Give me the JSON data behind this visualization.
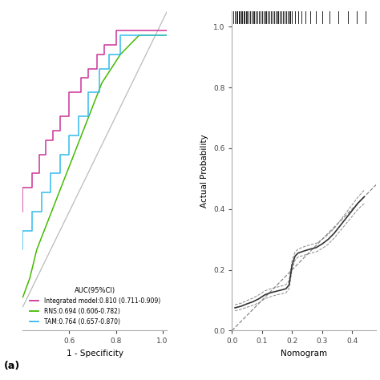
{
  "roc": {
    "title": "AUC(95%CI)",
    "xlabel": "1 - Specificity",
    "xlim": [
      0.4,
      1.02
    ],
    "ylim": [
      0.35,
      1.02
    ],
    "xticks": [
      0.6,
      0.8,
      1.0
    ],
    "panel_label": "(a)",
    "diagonal_color": "#bbbbbb",
    "curves": [
      {
        "label": "Integrated model:0.810 (0.711-0.909)",
        "color": "#cc3399",
        "fpr": [
          0.4,
          0.4,
          0.44,
          0.44,
          0.47,
          0.47,
          0.5,
          0.5,
          0.53,
          0.53,
          0.56,
          0.56,
          0.6,
          0.6,
          0.65,
          0.65,
          0.68,
          0.68,
          0.72,
          0.72,
          0.75,
          0.75,
          0.8,
          0.8,
          1.02
        ],
        "tpr": [
          0.6,
          0.65,
          0.65,
          0.68,
          0.68,
          0.72,
          0.72,
          0.75,
          0.75,
          0.77,
          0.77,
          0.8,
          0.8,
          0.85,
          0.85,
          0.88,
          0.88,
          0.9,
          0.9,
          0.93,
          0.93,
          0.95,
          0.95,
          0.98,
          0.98
        ]
      },
      {
        "label": "RNS:0.694 (0.606-0.782)",
        "color": "#44bb00",
        "fpr": [
          0.4,
          0.43,
          0.46,
          0.5,
          0.54,
          0.58,
          0.62,
          0.66,
          0.7,
          0.74,
          0.78,
          0.82,
          0.86,
          0.9,
          1.02
        ],
        "tpr": [
          0.42,
          0.46,
          0.52,
          0.57,
          0.62,
          0.67,
          0.72,
          0.77,
          0.82,
          0.87,
          0.9,
          0.93,
          0.95,
          0.97,
          0.97
        ]
      },
      {
        "label": "TAM:0.764 (0.657-0.870)",
        "color": "#33bbee",
        "fpr": [
          0.4,
          0.4,
          0.44,
          0.44,
          0.48,
          0.48,
          0.52,
          0.52,
          0.56,
          0.56,
          0.6,
          0.6,
          0.64,
          0.64,
          0.68,
          0.68,
          0.73,
          0.73,
          0.77,
          0.77,
          0.82,
          0.82,
          1.02
        ],
        "tpr": [
          0.52,
          0.56,
          0.56,
          0.6,
          0.6,
          0.64,
          0.64,
          0.68,
          0.68,
          0.72,
          0.72,
          0.76,
          0.76,
          0.8,
          0.8,
          0.85,
          0.85,
          0.9,
          0.9,
          0.93,
          0.93,
          0.97,
          0.97
        ]
      }
    ]
  },
  "calib": {
    "xlabel": "Nomogram",
    "ylabel": "Actual Probability",
    "xlim": [
      0.0,
      0.48
    ],
    "ylim": [
      0.0,
      1.05
    ],
    "xticks": [
      0.0,
      0.1,
      0.2,
      0.3,
      0.4
    ],
    "yticks": [
      0.0,
      0.2,
      0.4,
      0.6,
      0.8,
      1.0
    ],
    "diagonal_color": "#888888",
    "diagonal_style": "--",
    "calib_color": "#333333",
    "ci_color": "#888888",
    "calib_x": [
      0.01,
      0.03,
      0.05,
      0.07,
      0.09,
      0.11,
      0.13,
      0.15,
      0.17,
      0.18,
      0.19,
      0.2,
      0.21,
      0.22,
      0.24,
      0.26,
      0.28,
      0.3,
      0.32,
      0.34,
      0.36,
      0.38,
      0.4,
      0.42,
      0.44
    ],
    "calib_y": [
      0.075,
      0.08,
      0.088,
      0.095,
      0.105,
      0.118,
      0.125,
      0.13,
      0.135,
      0.138,
      0.15,
      0.215,
      0.245,
      0.255,
      0.262,
      0.268,
      0.273,
      0.285,
      0.3,
      0.32,
      0.345,
      0.37,
      0.395,
      0.42,
      0.44
    ],
    "ci_lower": [
      0.065,
      0.07,
      0.077,
      0.083,
      0.092,
      0.105,
      0.112,
      0.118,
      0.122,
      0.125,
      0.138,
      0.2,
      0.232,
      0.242,
      0.248,
      0.254,
      0.259,
      0.27,
      0.284,
      0.304,
      0.328,
      0.352,
      0.376,
      0.4,
      0.418
    ],
    "ci_upper": [
      0.085,
      0.09,
      0.099,
      0.107,
      0.118,
      0.131,
      0.138,
      0.143,
      0.148,
      0.152,
      0.163,
      0.23,
      0.258,
      0.268,
      0.276,
      0.282,
      0.287,
      0.3,
      0.316,
      0.336,
      0.362,
      0.388,
      0.414,
      0.44,
      0.462
    ],
    "rug_x_pos": [
      0.005,
      0.01,
      0.015,
      0.018,
      0.022,
      0.026,
      0.03,
      0.034,
      0.038,
      0.042,
      0.046,
      0.05,
      0.055,
      0.06,
      0.065,
      0.07,
      0.075,
      0.08,
      0.085,
      0.09,
      0.095,
      0.1,
      0.105,
      0.11,
      0.115,
      0.12,
      0.125,
      0.13,
      0.135,
      0.14,
      0.145,
      0.15,
      0.155,
      0.16,
      0.165,
      0.17,
      0.175,
      0.18,
      0.185,
      0.19,
      0.195,
      0.2,
      0.21,
      0.22,
      0.23,
      0.245,
      0.26,
      0.28,
      0.3,
      0.325,
      0.355,
      0.385,
      0.415,
      0.445
    ]
  }
}
